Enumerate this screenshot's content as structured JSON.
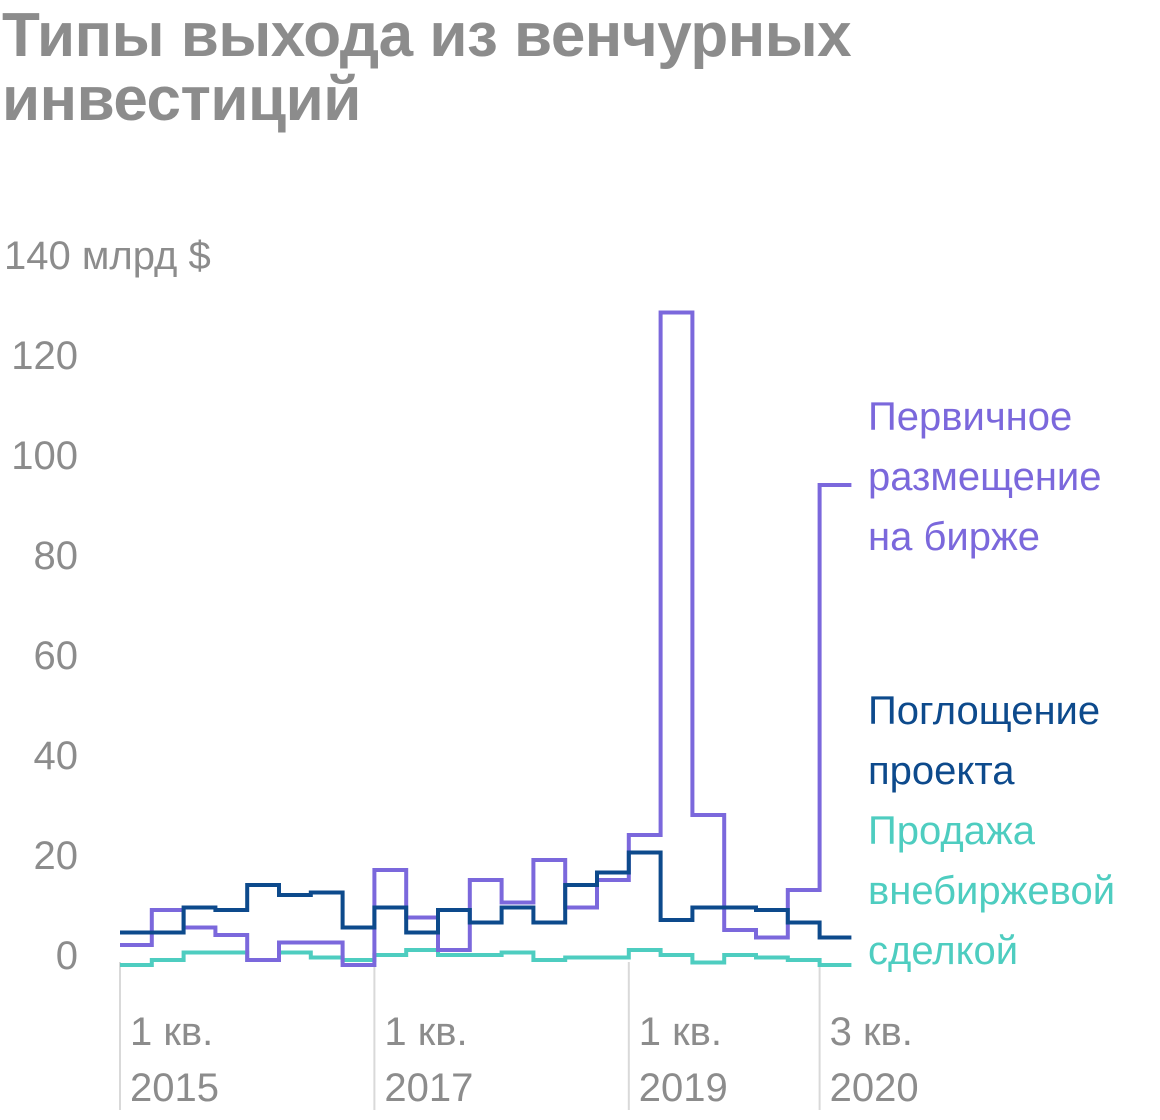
{
  "title_lines": [
    "Типы выхода из венчурных",
    "инвестиций"
  ],
  "colors": {
    "ipo": "#7b68dc",
    "acquisition": "#0d4a8c",
    "buyout": "#4ecdc0",
    "axis_text": "#8c8c8c",
    "grid": "#d9d9d9"
  },
  "chart_data": {
    "type": "line",
    "step": true,
    "y_unit_label": "140 млрд $",
    "ylim": [
      0,
      140
    ],
    "y_ticks": [
      0,
      20,
      40,
      60,
      80,
      100,
      120,
      140
    ],
    "y_tick_labels": [
      "0",
      "20",
      "40",
      "60",
      "80",
      "100",
      "120",
      "140 млрд $"
    ],
    "x": [
      "1 кв. 2015",
      "2 кв. 2015",
      "3 кв. 2015",
      "4 кв. 2015",
      "1 кв. 2016",
      "2 кв. 2016",
      "3 кв. 2016",
      "4 кв. 2016",
      "1 кв. 2017",
      "2 кв. 2017",
      "3 кв. 2017",
      "4 кв. 2017",
      "1 кв. 2018",
      "2 кв. 2018",
      "3 кв. 2018",
      "4 кв. 2018",
      "1 кв. 2019",
      "2 кв. 2019",
      "3 кв. 2019",
      "4 кв. 2019",
      "1 кв. 2020",
      "2 кв. 2020",
      "3 кв. 2020"
    ],
    "x_ticks": [
      {
        "index": 0,
        "lines": [
          "1 кв.",
          "2015"
        ]
      },
      {
        "index": 8,
        "lines": [
          "1 кв.",
          "2017"
        ]
      },
      {
        "index": 16,
        "lines": [
          "1 кв.",
          "2019"
        ]
      },
      {
        "index": 22,
        "lines": [
          "3 кв.",
          "2020"
        ]
      }
    ],
    "series": [
      {
        "key": "ipo",
        "name_lines": [
          "Первичное",
          "размещение",
          "на бирже"
        ],
        "values": [
          2,
          9,
          5.5,
          4,
          -1,
          2.5,
          2.5,
          -2,
          17,
          7.5,
          1,
          15,
          10.5,
          19,
          9.5,
          15,
          24,
          128.5,
          28,
          5,
          3.5,
          13,
          94
        ]
      },
      {
        "key": "acquisition",
        "name_lines": [
          "Поглощение",
          "проекта"
        ],
        "values": [
          4.5,
          4.5,
          9.5,
          9,
          14,
          12,
          12.5,
          5.5,
          9.5,
          4.5,
          9,
          6.5,
          9.5,
          6.5,
          14,
          16.5,
          20.5,
          7,
          9.5,
          9.5,
          9,
          6.5,
          3.5
        ]
      },
      {
        "key": "buyout",
        "name_lines": [
          "Продажа",
          "внебиржевой",
          "сделкой"
        ],
        "values": [
          -2,
          -1,
          0.5,
          0.5,
          -1,
          0.5,
          -0.5,
          -1,
          0,
          1,
          0,
          0,
          0.5,
          -1,
          -0.5,
          -0.5,
          1,
          0,
          -1.5,
          0,
          -0.5,
          -1,
          -2
        ]
      }
    ]
  }
}
